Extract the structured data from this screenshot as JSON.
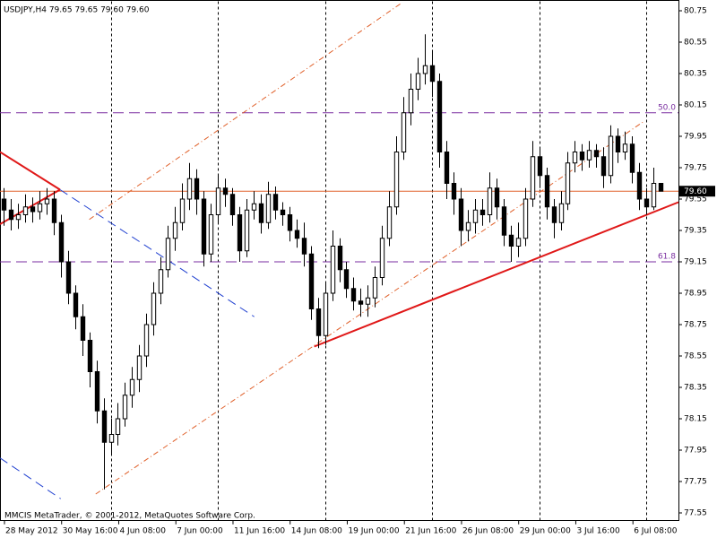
{
  "chart_data": {
    "type": "candlestick",
    "title": "USDJPY,H4  79.65 79.65 79.60 79.60",
    "footer": "MMCIS MetaTrader, © 2001-2012, MetaQuotes Software Corp.",
    "bull_color": "#ffffff",
    "bear_color": "#000000",
    "xlim": [
      -0.5,
      94.5
    ],
    "ylim": [
      77.5,
      80.81
    ],
    "yticks": [
      80.75,
      80.55,
      80.35,
      80.15,
      79.95,
      79.75,
      79.55,
      79.35,
      79.15,
      78.95,
      78.75,
      78.55,
      78.35,
      78.15,
      77.95,
      77.75,
      77.55
    ],
    "xticks": [
      {
        "value": 0,
        "label": "28 May 2012"
      },
      {
        "value": 8,
        "label": "30 May 16:00"
      },
      {
        "value": 16,
        "label": "4 Jun 08:00"
      },
      {
        "value": 24,
        "label": "7 Jun 00:00"
      },
      {
        "value": 32,
        "label": "11 Jun 16:00"
      },
      {
        "value": 40,
        "label": "14 Jun 08:00"
      },
      {
        "value": 48,
        "label": "19 Jun 00:00"
      },
      {
        "value": 56,
        "label": "21 Jun 16:00"
      },
      {
        "value": 64,
        "label": "26 Jun 08:00"
      },
      {
        "value": 72,
        "label": "29 Jun 00:00"
      },
      {
        "value": 80,
        "label": "3 Jul 16:00"
      },
      {
        "value": 88,
        "label": "6 Jul 08:00"
      }
    ],
    "separators": [
      15,
      30,
      45,
      60,
      75,
      90
    ],
    "open": [
      79.55,
      79.48,
      79.42,
      79.45,
      79.5,
      79.47,
      79.52,
      79.55,
      79.4,
      79.15,
      78.95,
      78.8,
      78.65,
      78.45,
      78.2,
      78.0,
      78.05,
      78.15,
      78.3,
      78.4,
      78.55,
      78.75,
      78.95,
      79.1,
      79.3,
      79.4,
      79.55,
      79.68,
      79.55,
      79.2,
      79.45,
      79.62,
      79.58,
      79.45,
      79.22,
      79.48,
      79.52,
      79.4,
      79.58,
      79.48,
      79.45,
      79.35,
      79.3,
      79.2,
      78.85,
      78.68,
      78.95,
      79.25,
      79.1,
      78.98,
      78.9,
      78.88,
      78.92,
      79.05,
      79.3,
      79.5,
      79.85,
      80.1,
      80.25,
      80.35,
      80.4,
      80.3,
      79.85,
      79.65,
      79.55,
      79.35,
      79.4,
      79.48,
      79.45,
      79.62,
      79.5,
      79.32,
      79.25,
      79.3,
      79.55,
      79.82,
      79.7,
      79.5,
      79.4,
      79.52,
      79.78,
      79.85,
      79.8,
      79.86,
      79.82,
      79.7,
      79.95,
      79.85,
      79.9,
      79.72,
      79.55,
      79.5,
      79.65
    ],
    "high": [
      79.62,
      79.55,
      79.52,
      79.58,
      79.56,
      79.6,
      79.62,
      79.6,
      79.45,
      79.22,
      79.0,
      78.88,
      78.7,
      78.52,
      78.28,
      78.15,
      78.25,
      78.38,
      78.48,
      78.62,
      78.82,
      79.02,
      79.18,
      79.38,
      79.5,
      79.65,
      79.78,
      79.74,
      79.6,
      79.52,
      79.7,
      79.68,
      79.62,
      79.5,
      79.55,
      79.6,
      79.58,
      79.66,
      79.63,
      79.53,
      79.5,
      79.42,
      79.4,
      79.25,
      78.92,
      79.02,
      79.35,
      79.3,
      79.15,
      79.05,
      78.98,
      79.0,
      79.12,
      79.38,
      79.6,
      79.95,
      80.2,
      80.35,
      80.45,
      80.6,
      80.5,
      80.35,
      79.92,
      79.72,
      79.62,
      79.48,
      79.55,
      79.55,
      79.72,
      79.68,
      79.55,
      79.38,
      79.4,
      79.62,
      79.92,
      79.88,
      79.75,
      79.55,
      79.6,
      79.85,
      79.92,
      79.9,
      79.92,
      79.9,
      79.88,
      80.02,
      80.0,
      79.98,
      79.95,
      79.78,
      79.62,
      79.75,
      79.65
    ],
    "low": [
      79.38,
      79.35,
      79.36,
      79.4,
      79.4,
      79.42,
      79.45,
      79.32,
      79.05,
      78.88,
      78.72,
      78.55,
      78.35,
      78.12,
      77.7,
      77.92,
      77.98,
      78.1,
      78.22,
      78.32,
      78.48,
      78.68,
      78.88,
      79.05,
      79.22,
      79.35,
      79.48,
      79.45,
      79.12,
      79.15,
      79.4,
      79.5,
      79.38,
      79.15,
      79.18,
      79.42,
      79.33,
      79.36,
      79.42,
      79.38,
      79.28,
      79.24,
      79.12,
      78.78,
      78.6,
      78.62,
      78.9,
      79.02,
      78.92,
      78.84,
      78.8,
      78.8,
      78.86,
      79.0,
      79.25,
      79.45,
      79.8,
      80.02,
      80.18,
      80.28,
      80.2,
      79.75,
      79.55,
      79.45,
      79.25,
      79.28,
      79.33,
      79.38,
      79.4,
      79.42,
      79.25,
      79.15,
      79.18,
      79.25,
      79.5,
      79.62,
      79.42,
      79.3,
      79.35,
      79.48,
      79.72,
      79.73,
      79.75,
      79.75,
      79.62,
      79.65,
      79.78,
      79.8,
      79.65,
      79.48,
      79.45,
      79.48,
      79.6
    ],
    "close": [
      79.48,
      79.42,
      79.45,
      79.5,
      79.47,
      79.52,
      79.55,
      79.4,
      79.15,
      78.95,
      78.8,
      78.65,
      78.45,
      78.2,
      78.0,
      78.05,
      78.15,
      78.3,
      78.4,
      78.55,
      78.75,
      78.95,
      79.1,
      79.3,
      79.4,
      79.55,
      79.68,
      79.55,
      79.2,
      79.45,
      79.62,
      79.58,
      79.45,
      79.22,
      79.48,
      79.52,
      79.4,
      79.58,
      79.48,
      79.45,
      79.35,
      79.3,
      79.2,
      78.85,
      78.68,
      78.95,
      79.25,
      79.1,
      78.98,
      78.9,
      78.88,
      78.92,
      79.05,
      79.3,
      79.5,
      79.85,
      80.1,
      80.25,
      80.35,
      80.4,
      80.3,
      79.85,
      79.65,
      79.55,
      79.35,
      79.4,
      79.48,
      79.45,
      79.62,
      79.5,
      79.32,
      79.25,
      79.3,
      79.55,
      79.82,
      79.7,
      79.5,
      79.4,
      79.52,
      79.78,
      79.85,
      79.8,
      79.86,
      79.82,
      79.7,
      79.95,
      79.85,
      79.9,
      79.72,
      79.55,
      79.5,
      79.65,
      79.6
    ],
    "price_line": {
      "value": 79.6,
      "label": "79.60",
      "color": "#e0602a"
    },
    "fib_levels": [
      {
        "price": 80.1,
        "label": "50.0"
      },
      {
        "price": 79.15,
        "label": "61.8"
      }
    ],
    "fib_color": "#7a2ea0",
    "lines": [
      {
        "x": [
          43.5,
          94.5
        ],
        "y": [
          78.61,
          79.53
        ],
        "color": "#e01818",
        "style": "solid",
        "width": 2
      },
      {
        "x": [
          -0.5,
          7.9
        ],
        "y": [
          79.85,
          79.61
        ],
        "color": "#e01818",
        "style": "solid",
        "width": 2
      },
      {
        "x": [
          7.9,
          -0.5
        ],
        "y": [
          79.61,
          79.39
        ],
        "color": "#e01818",
        "style": "solid",
        "width": 2
      },
      {
        "x": [
          7.9,
          35.1
        ],
        "y": [
          79.61,
          78.8
        ],
        "color": "#2040d0",
        "style": "dash",
        "width": 1
      },
      {
        "x": [
          -0.5,
          8
        ],
        "y": [
          77.9,
          77.64
        ],
        "color": "#2040d0",
        "style": "dash",
        "width": 1
      },
      {
        "x": [
          12.9,
          89.5
        ],
        "y": [
          77.67,
          80.04
        ],
        "color": "#e0602a",
        "style": "dashdot",
        "width": 1
      },
      {
        "x": [
          12,
          55.75
        ],
        "y": [
          79.42,
          80.8
        ],
        "color": "#e0602a",
        "style": "dashdot",
        "width": 1
      }
    ]
  }
}
